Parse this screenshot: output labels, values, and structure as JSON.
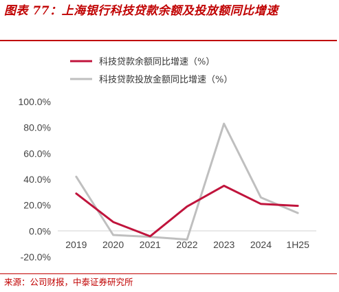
{
  "figure": {
    "title": "图表 77：上海银行科技贷款余额及投放额同比增速",
    "source": "来源：公司财报，中泰证券研究所"
  },
  "colors": {
    "title": "#c00000",
    "series_1": "#c0143c",
    "series_2": "#bfbfbf",
    "axis": "#d9d9d9",
    "tick_text": "#444444"
  },
  "chart_data": {
    "type": "line",
    "categories": [
      "2019",
      "2020",
      "2021",
      "2022",
      "2023",
      "2024",
      "1H25"
    ],
    "series": [
      {
        "name": "科技贷款余额同比增速（%）",
        "values": [
          29.0,
          7.0,
          -4.0,
          19.0,
          35.0,
          21.0,
          19.5
        ]
      },
      {
        "name": "科技贷款投放金额同比增速（%）",
        "values": [
          42.0,
          -3.0,
          -4.5,
          -6.5,
          83.0,
          26.0,
          14.0
        ]
      }
    ],
    "ylim": [
      -20,
      100
    ],
    "yticks": [
      "100.0%",
      "80.0%",
      "60.0%",
      "40.0%",
      "20.0%",
      "0.0%",
      "-20.0%"
    ],
    "ytick_values": [
      100,
      80,
      60,
      40,
      20,
      0,
      -20
    ],
    "xlabel": "",
    "ylabel": "",
    "grid": false,
    "legend_position": "top"
  }
}
